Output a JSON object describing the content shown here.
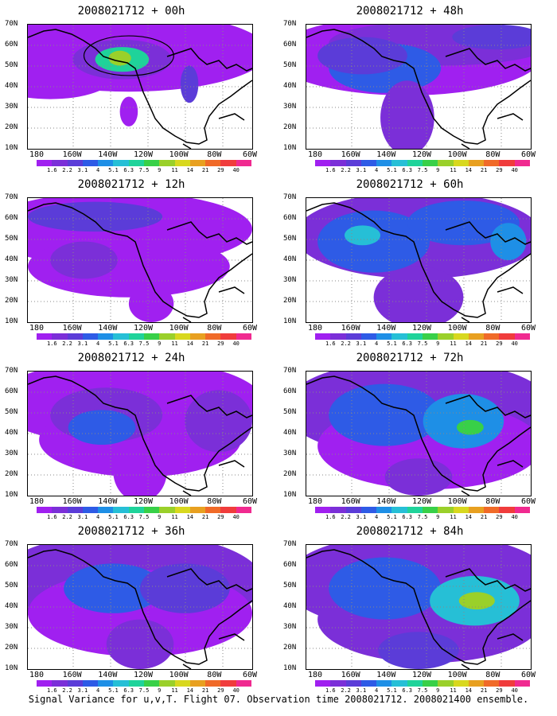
{
  "panels": [
    {
      "title": "2008021712 + 00h"
    },
    {
      "title": "2008021712 + 48h"
    },
    {
      "title": "2008021712 + 12h"
    },
    {
      "title": "2008021712 + 60h"
    },
    {
      "title": "2008021712 + 24h"
    },
    {
      "title": "2008021712 + 72h"
    },
    {
      "title": "2008021712 + 36h"
    },
    {
      "title": "2008021712 + 84h"
    }
  ],
  "lat_labels": [
    "70N",
    "60N",
    "50N",
    "40N",
    "30N",
    "20N",
    "10N"
  ],
  "lon_labels": [
    "180",
    "160W",
    "140W",
    "120W",
    "100W",
    "80W",
    "60W"
  ],
  "colorbar": {
    "labels": [
      "1.6",
      "2.2",
      "3.1",
      "4",
      "5.1",
      "6.3",
      "7.5",
      "9",
      "11",
      "14",
      "21",
      "29",
      "40"
    ],
    "colors": [
      "#a020f0",
      "#7b2fd8",
      "#5b3cd8",
      "#2e5be6",
      "#1e8fe6",
      "#26bfd6",
      "#1fd39a",
      "#38d048",
      "#9ad02a",
      "#d8d81e",
      "#e8a020",
      "#f06a28",
      "#f03c3c",
      "#f02a90"
    ]
  },
  "footer": "Signal Variance for u,v,T. Flight 07. Observation time 2008021712. 2008021400 ensemble."
}
